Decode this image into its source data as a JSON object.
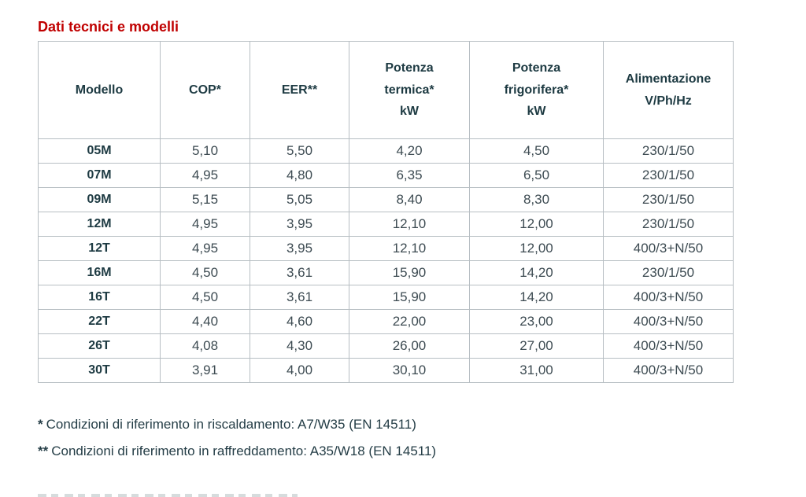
{
  "page": {
    "title": "Dati tecnici e modelli"
  },
  "table": {
    "columns": {
      "modello": "Modello",
      "cop": "COP*",
      "eer": "EER**",
      "potenza_termica": "Potenza\ntermica*\nkW",
      "potenza_frigorifera": "Potenza\nfrigorifera*\nkW",
      "alimentazione": "Alimentazione\nV/Ph/Hz"
    },
    "rows": [
      {
        "cells": [
          "05M",
          "5,10",
          "5,50",
          "4,20",
          "4,50",
          "230/1/50"
        ]
      },
      {
        "cells": [
          "07M",
          "4,95",
          "4,80",
          "6,35",
          "6,50",
          "230/1/50"
        ]
      },
      {
        "cells": [
          "09M",
          "5,15",
          "5,05",
          "8,40",
          "8,30",
          "230/1/50"
        ]
      },
      {
        "cells": [
          "12M",
          "4,95",
          "3,95",
          "12,10",
          "12,00",
          "230/1/50"
        ]
      },
      {
        "cells": [
          "12T",
          "4,95",
          "3,95",
          "12,10",
          "12,00",
          "400/3+N/50"
        ]
      },
      {
        "cells": [
          "16M",
          "4,50",
          "3,61",
          "15,90",
          "14,20",
          "230/1/50"
        ]
      },
      {
        "cells": [
          "16T",
          "4,50",
          "3,61",
          "15,90",
          "14,20",
          "400/3+N/50"
        ]
      },
      {
        "cells": [
          "22T",
          "4,40",
          "4,60",
          "22,00",
          "23,00",
          "400/3+N/50"
        ]
      },
      {
        "cells": [
          "26T",
          "4,08",
          "4,30",
          "26,00",
          "27,00",
          "400/3+N/50"
        ]
      },
      {
        "cells": [
          "30T",
          "3,91",
          "4,00",
          "30,10",
          "31,00",
          "400/3+N/50"
        ]
      }
    ]
  },
  "footnotes": [
    {
      "marker": "*",
      "text": "Condizioni di riferimento in riscaldamento: A7/W35 (EN 14511)"
    },
    {
      "marker": "**",
      "text": "Condizioni di riferimento in raffreddamento: A35/W18 (EN 14511)"
    }
  ],
  "colors": {
    "title_red": "#c00000",
    "header_text": "#1d3a42",
    "value_text": "#3d4b52",
    "border": "#b7bec3"
  }
}
